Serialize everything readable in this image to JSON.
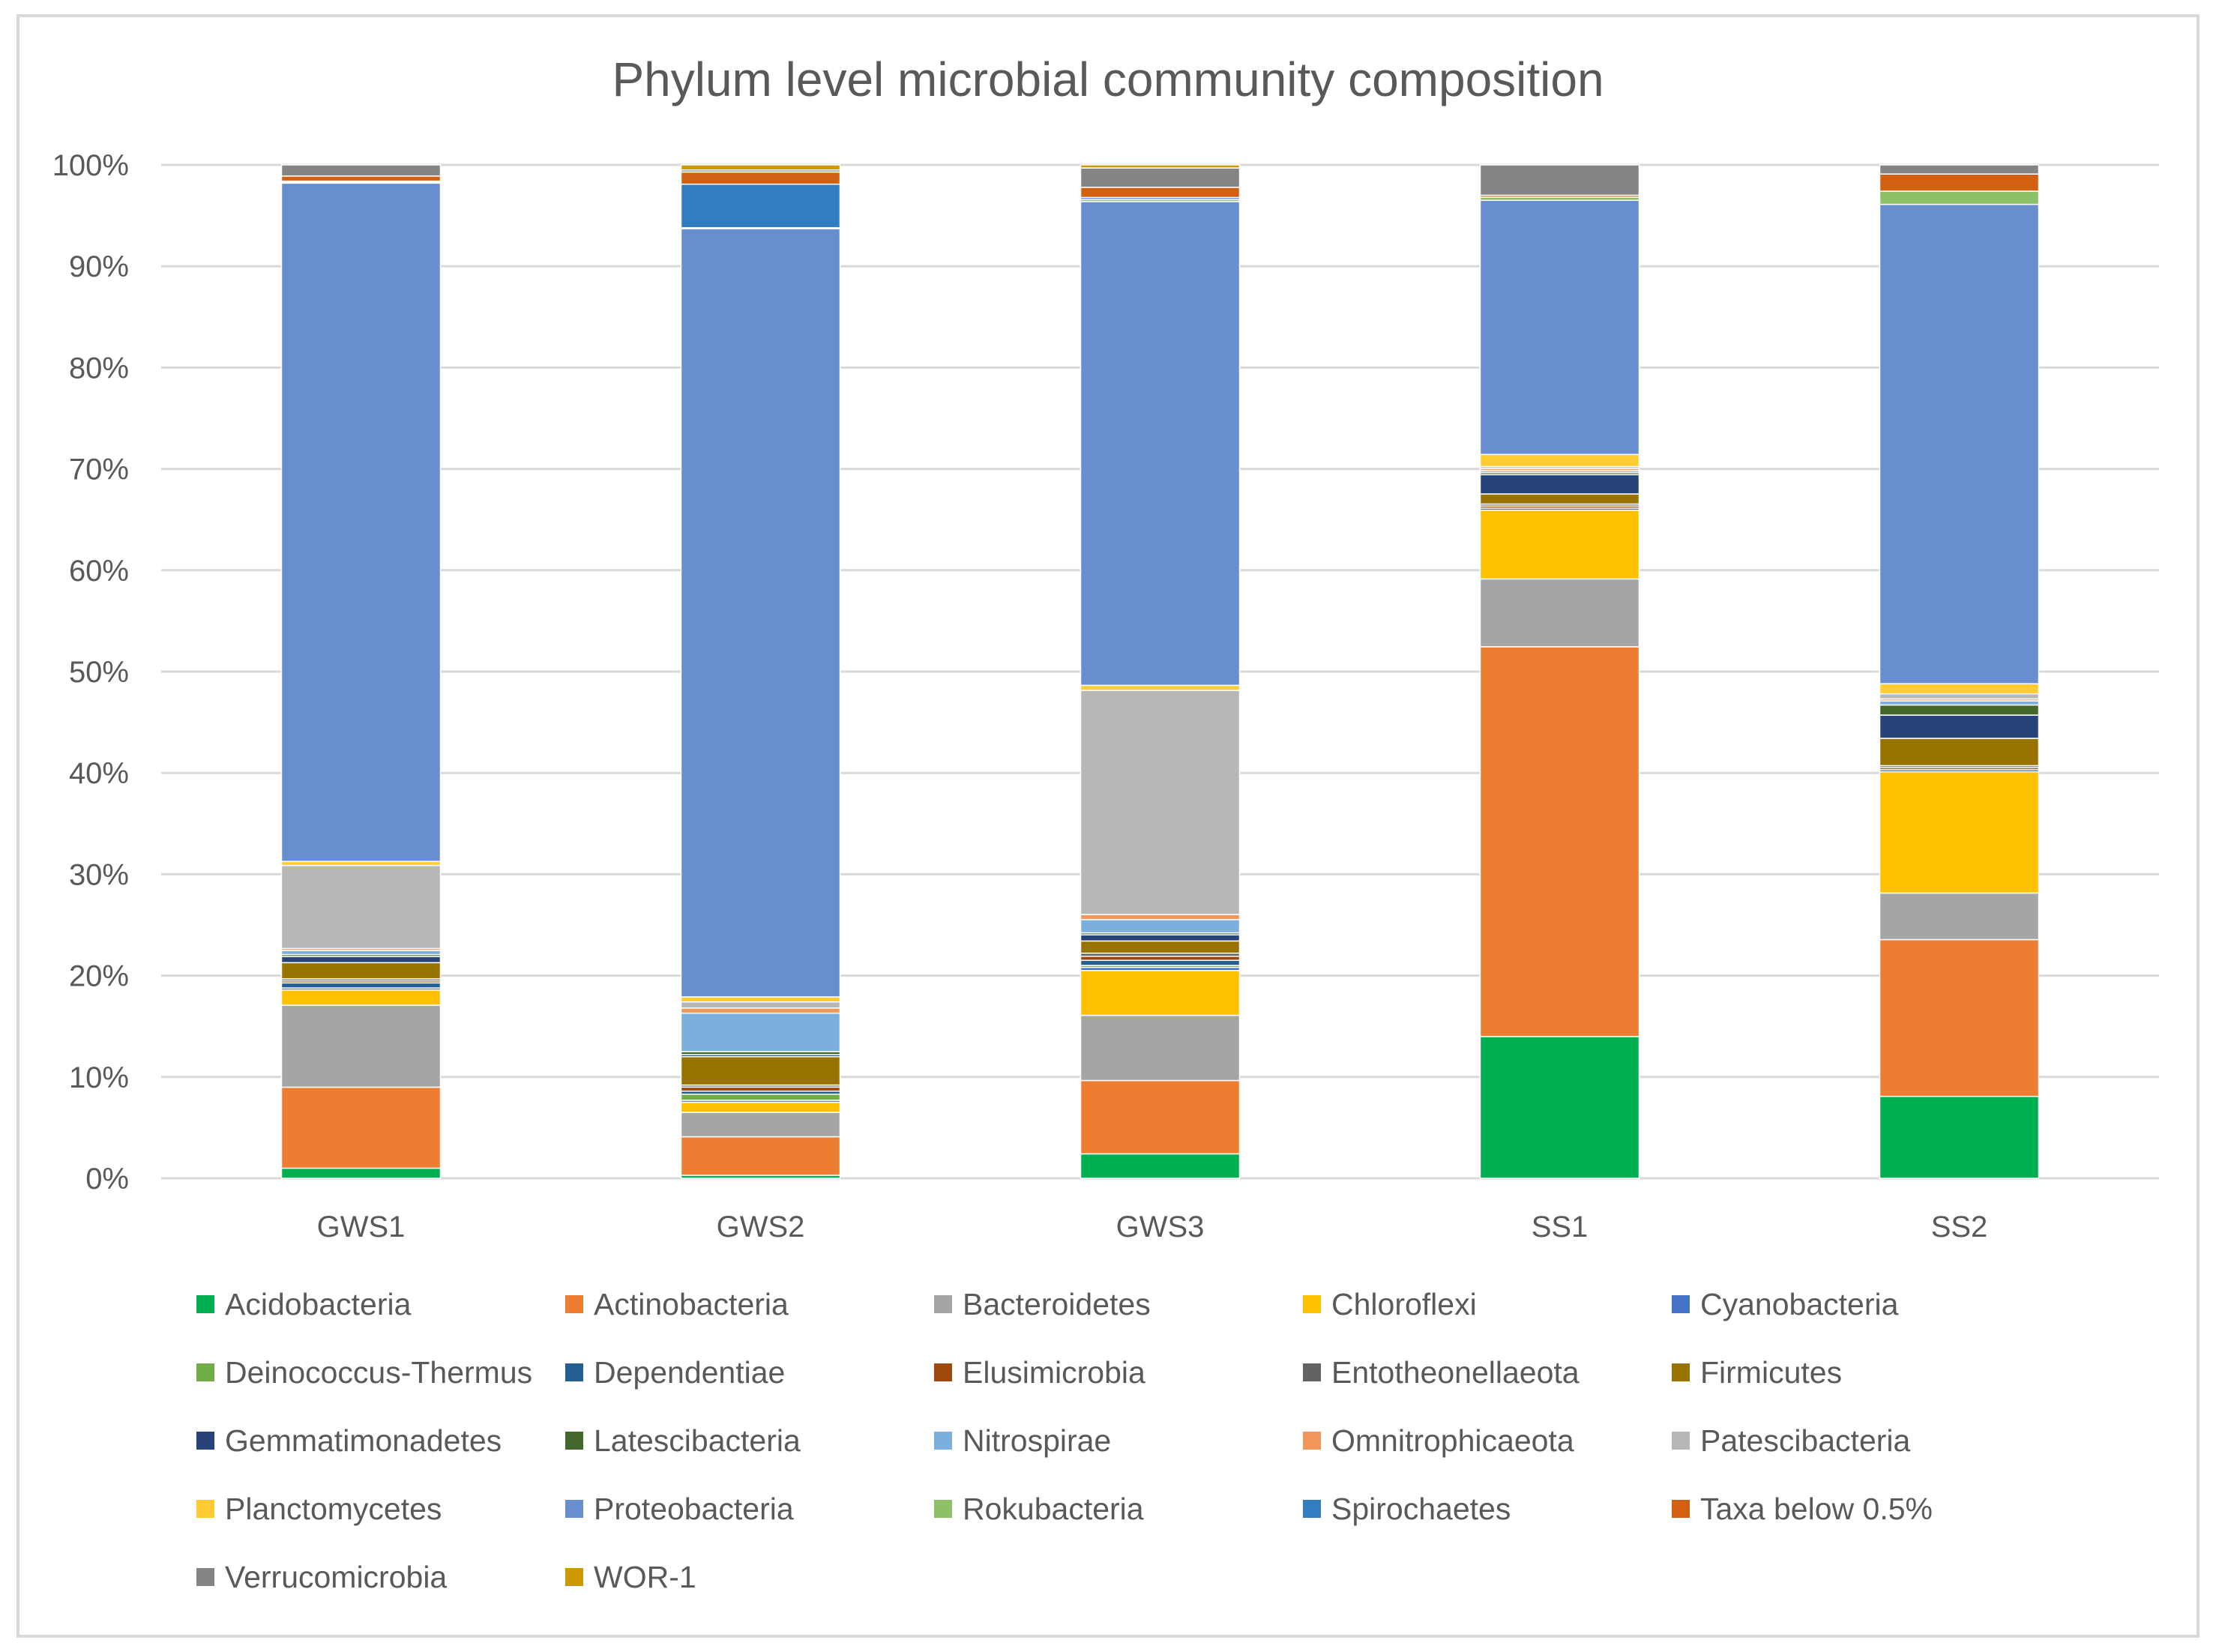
{
  "chart_data": {
    "type": "bar",
    "stacked": true,
    "percent_stacked": true,
    "title": "Phylum level microbial community composition",
    "xlabel": "",
    "ylabel": "",
    "ylim": [
      0,
      100
    ],
    "y_ticks": [
      "0%",
      "10%",
      "20%",
      "30%",
      "40%",
      "50%",
      "60%",
      "70%",
      "80%",
      "90%",
      "100%"
    ],
    "grid": true,
    "legend_position": "bottom",
    "categories": [
      "GWS1",
      "GWS2",
      "GWS3",
      "SS1",
      "SS2"
    ],
    "series": [
      {
        "name": "Acidobacteria",
        "color": "#00b050",
        "values": [
          1.0,
          0.3,
          2.4,
          14.0,
          8.1
        ]
      },
      {
        "name": "Actinobacteria",
        "color": "#ed7d31",
        "values": [
          8.0,
          3.8,
          7.2,
          38.5,
          15.5
        ]
      },
      {
        "name": "Bacteroidetes",
        "color": "#a5a5a5",
        "values": [
          8.1,
          2.4,
          6.4,
          6.7,
          4.6
        ]
      },
      {
        "name": "Chloroflexi",
        "color": "#ffc000",
        "values": [
          1.5,
          1.0,
          4.4,
          6.8,
          12.0
        ]
      },
      {
        "name": "Cyanobacteria",
        "color": "#4472c4",
        "values": [
          0.2,
          0.2,
          0.3,
          0.0,
          0.0
        ]
      },
      {
        "name": "Deinococcus-Thermus",
        "color": "#70ad47",
        "values": [
          0.0,
          0.6,
          0.2,
          0.0,
          0.0
        ]
      },
      {
        "name": "Dependentiae",
        "color": "#255e91",
        "values": [
          0.5,
          0.3,
          0.5,
          0.2,
          0.2
        ]
      },
      {
        "name": "Elusimicrobia",
        "color": "#9e480e",
        "values": [
          0.2,
          0.4,
          0.4,
          0.2,
          0.2
        ]
      },
      {
        "name": "Entotheonellaeota",
        "color": "#636363",
        "values": [
          0.2,
          0.2,
          0.3,
          0.2,
          0.2
        ]
      },
      {
        "name": "Firmicutes",
        "color": "#997300",
        "values": [
          1.6,
          2.8,
          1.2,
          1.0,
          2.7
        ]
      },
      {
        "name": "Gemmatimonadetes",
        "color": "#264478",
        "values": [
          0.6,
          0.2,
          0.6,
          1.9,
          2.3
        ]
      },
      {
        "name": "Latescibacteria",
        "color": "#43682b",
        "values": [
          0.2,
          0.3,
          0.2,
          0.2,
          1.0
        ]
      },
      {
        "name": "Nitrospirae",
        "color": "#7cafdd",
        "values": [
          0.4,
          3.8,
          1.3,
          0.2,
          0.4
        ]
      },
      {
        "name": "Omnitrophicaeota",
        "color": "#f1975a",
        "values": [
          0.2,
          0.5,
          0.5,
          0.2,
          0.2
        ]
      },
      {
        "name": "Patescibacteria",
        "color": "#b7b7b7",
        "values": [
          8.2,
          0.6,
          22.0,
          0.2,
          0.5
        ]
      },
      {
        "name": "Planctomycetes",
        "color": "#ffcd33",
        "values": [
          0.4,
          0.5,
          0.5,
          1.2,
          1.0
        ]
      },
      {
        "name": "Proteobacteria",
        "color": "#698ed0",
        "values": [
          67.0,
          75.8,
          47.5,
          25.1,
          47.4
        ]
      },
      {
        "name": "Rokubacteria",
        "color": "#8cc168",
        "values": [
          0.1,
          0.1,
          0.2,
          0.3,
          1.3
        ]
      },
      {
        "name": "Spirochaetes",
        "color": "#327dc2",
        "values": [
          0.1,
          4.3,
          0.2,
          0.0,
          0.0
        ]
      },
      {
        "name": "Taxa below 0.5%",
        "color": "#d26012",
        "values": [
          0.5,
          1.2,
          1.0,
          0.2,
          1.7
        ]
      },
      {
        "name": "Verrucomicrobia",
        "color": "#848484",
        "values": [
          1.1,
          0.2,
          1.9,
          3.0,
          0.9
        ]
      },
      {
        "name": "WOR-1",
        "color": "#cc9a00",
        "values": [
          0.0,
          0.5,
          0.3,
          0.0,
          0.0
        ]
      }
    ]
  }
}
